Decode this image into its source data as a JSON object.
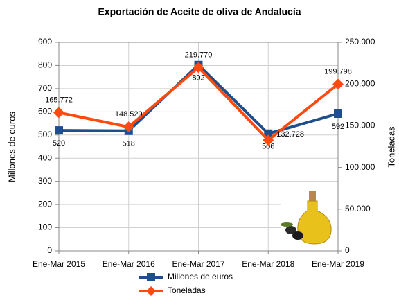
{
  "chart_data": {
    "type": "line",
    "title": "Exportación de Aceite de oliva de Andalucía",
    "y_label": "Millones de euros",
    "y2_label": "Toneladas",
    "categories": [
      "Ene-Mar 2015",
      "Ene-Mar 2016",
      "Ene-Mar 2017",
      "Ene-Mar 2018",
      "Ene-Mar 2019"
    ],
    "series": [
      {
        "name": "Millones de euros",
        "color": "#1f4e8c",
        "marker": "square",
        "values": [
          520,
          518,
          802,
          506,
          592
        ]
      },
      {
        "name": "Toneladas",
        "color": "#ff4a0f",
        "marker": "diamond",
        "axis": "y2",
        "values": [
          165772,
          148529,
          219770,
          132728,
          199798
        ],
        "value_labels": [
          "165.772",
          "148.529",
          "219.770",
          "132.728",
          "199.798"
        ]
      }
    ],
    "ylim": [
      0,
      900
    ],
    "yticks": [
      0,
      100,
      200,
      300,
      400,
      500,
      600,
      700,
      800,
      900
    ],
    "y2lim": [
      0,
      250000
    ],
    "y2ticks": [
      0,
      {
        "value": 50000,
        "label": "50.000"
      },
      {
        "value": 100000,
        "label": "100.000"
      },
      {
        "value": 150000,
        "label": "150.000"
      },
      {
        "value": 200000,
        "label": "200.000"
      },
      {
        "value": 250000,
        "label": "250.000"
      }
    ],
    "grid": true,
    "legend": "bottom"
  }
}
